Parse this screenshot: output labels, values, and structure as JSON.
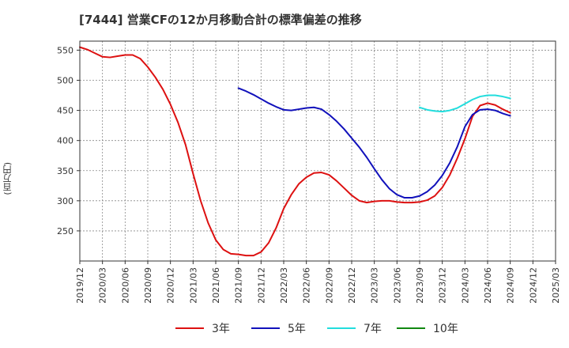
{
  "chart_data": {
    "type": "line",
    "title": "[7444]  営業CFの12か月移動合計の標準偏差の推移",
    "ylabel": "(百万円)",
    "xlabel": "",
    "ylim": [
      200,
      565
    ],
    "yticks": [
      250,
      300,
      350,
      400,
      450,
      500,
      550
    ],
    "x_tick_labels": [
      "2019/12",
      "2020/03",
      "2020/06",
      "2020/09",
      "2020/12",
      "2021/03",
      "2021/06",
      "2021/09",
      "2021/12",
      "2022/03",
      "2022/06",
      "2022/09",
      "2022/12",
      "2023/03",
      "2023/06",
      "2023/09",
      "2023/12",
      "2024/03",
      "2024/06",
      "2024/09",
      "2024/12",
      "2025/03"
    ],
    "grid": true,
    "legend_position": "bottom",
    "series": [
      {
        "name": "3年",
        "color": "#dd1111",
        "x": [
          "2019/12",
          "2020/01",
          "2020/02",
          "2020/03",
          "2020/04",
          "2020/05",
          "2020/06",
          "2020/07",
          "2020/08",
          "2020/09",
          "2020/10",
          "2020/11",
          "2020/12",
          "2021/01",
          "2021/02",
          "2021/03",
          "2021/04",
          "2021/05",
          "2021/06",
          "2021/07",
          "2021/08",
          "2021/09",
          "2021/10",
          "2021/11",
          "2021/12",
          "2022/01",
          "2022/02",
          "2022/03",
          "2022/04",
          "2022/05",
          "2022/06",
          "2022/07",
          "2022/08",
          "2022/09",
          "2022/10",
          "2022/11",
          "2022/12",
          "2023/01",
          "2023/02",
          "2023/03",
          "2023/04",
          "2023/05",
          "2023/06",
          "2023/07",
          "2023/08",
          "2023/09",
          "2023/10",
          "2023/11",
          "2023/12",
          "2024/01",
          "2024/02",
          "2024/03",
          "2024/04",
          "2024/05",
          "2024/06",
          "2024/07",
          "2024/08",
          "2024/09"
        ],
        "values": [
          555,
          551,
          545,
          539,
          538,
          540,
          542,
          542,
          536,
          522,
          505,
          485,
          460,
          430,
          393,
          345,
          300,
          263,
          235,
          219,
          212,
          211,
          209,
          209,
          215,
          230,
          255,
          287,
          310,
          328,
          339,
          346,
          347,
          343,
          333,
          321,
          309,
          300,
          297,
          299,
          300,
          300,
          298,
          297,
          297,
          298,
          301,
          308,
          322,
          343,
          371,
          403,
          440,
          458,
          462,
          459,
          452,
          446
        ]
      },
      {
        "name": "5年",
        "color": "#1111bb",
        "x": [
          "2021/09",
          "2021/10",
          "2021/11",
          "2021/12",
          "2022/01",
          "2022/02",
          "2022/03",
          "2022/04",
          "2022/05",
          "2022/06",
          "2022/07",
          "2022/08",
          "2022/09",
          "2022/10",
          "2022/11",
          "2022/12",
          "2023/01",
          "2023/02",
          "2023/03",
          "2023/04",
          "2023/05",
          "2023/06",
          "2023/07",
          "2023/08",
          "2023/09",
          "2023/10",
          "2023/11",
          "2023/12",
          "2024/01",
          "2024/02",
          "2024/03",
          "2024/04",
          "2024/05",
          "2024/06",
          "2024/07",
          "2024/08",
          "2024/09"
        ],
        "values": [
          487,
          482,
          476,
          469,
          462,
          456,
          451,
          450,
          452,
          454,
          455,
          452,
          443,
          432,
          419,
          404,
          389,
          372,
          353,
          335,
          320,
          310,
          305,
          305,
          308,
          315,
          326,
          342,
          363,
          390,
          423,
          443,
          451,
          452,
          450,
          445,
          441
        ]
      },
      {
        "name": "7年",
        "color": "#22dddd",
        "x": [
          "2023/09",
          "2023/10",
          "2023/11",
          "2023/12",
          "2024/01",
          "2024/02",
          "2024/03",
          "2024/04",
          "2024/05",
          "2024/06",
          "2024/07",
          "2024/08",
          "2024/09"
        ],
        "values": [
          455,
          451,
          449,
          448,
          450,
          454,
          461,
          468,
          473,
          475,
          475,
          473,
          470
        ]
      },
      {
        "name": "10年",
        "color": "#118811",
        "x": [],
        "values": []
      }
    ]
  }
}
